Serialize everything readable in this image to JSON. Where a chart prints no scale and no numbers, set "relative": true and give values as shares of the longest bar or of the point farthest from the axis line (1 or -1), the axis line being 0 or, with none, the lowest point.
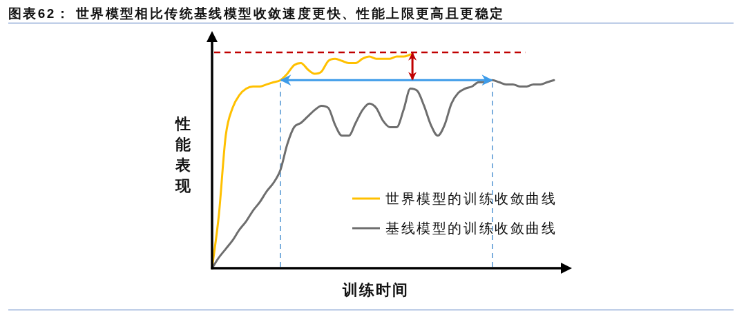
{
  "chart_data": {
    "type": "line",
    "title": "图表62： 世界模型相比传统基线模型收敛速度更快、性能上限更高且更稳定",
    "xlabel": "训练时间",
    "ylabel": "性能表现",
    "relative": true,
    "categories": [
      null,
      null,
      null,
      null,
      null,
      null,
      null,
      null,
      null,
      null,
      null,
      null,
      null,
      null,
      null,
      null,
      null,
      null,
      null,
      null,
      null,
      null,
      null,
      null,
      null,
      null,
      null,
      null,
      null,
      null,
      null,
      null,
      null,
      null,
      null,
      null,
      null,
      null,
      null,
      null,
      null,
      null,
      null,
      null,
      null,
      null,
      null,
      null,
      null,
      null,
      null
    ],
    "series": [
      {
        "name": "世界模型的训练收敛曲线",
        "color": "#ffc000",
        "values": [
          0,
          0.25,
          0.62,
          0.75,
          0.81,
          0.84,
          0.85,
          0.85,
          0.86,
          0.87,
          0.88,
          0.91,
          0.95,
          0.96,
          0.93,
          0.91,
          0.92,
          0.97,
          0.98,
          0.97,
          0.96,
          0.96,
          0.98,
          0.99,
          0.98,
          0.98,
          0.98,
          0.99,
          0.99,
          1,
          null,
          null,
          null,
          null,
          null,
          null,
          null,
          null,
          null,
          null,
          null,
          null,
          null,
          null,
          null,
          null,
          null,
          null,
          null,
          null,
          null
        ]
      },
      {
        "name": "基线模型的训练收敛曲线",
        "color": "#6e6e6e",
        "values": [
          0,
          0.05,
          0.09,
          0.13,
          0.18,
          0.22,
          0.27,
          0.31,
          0.36,
          0.4,
          0.46,
          0.58,
          0.66,
          0.68,
          0.71,
          0.74,
          0.76,
          0.75,
          0.67,
          0.62,
          0.62,
          0.68,
          0.74,
          0.77,
          0.75,
          0.69,
          0.66,
          0.66,
          0.74,
          0.84,
          0.83,
          0.76,
          0.67,
          0.62,
          0.67,
          0.77,
          0.82,
          0.84,
          0.85,
          0.87,
          0.87,
          0.88,
          0.87,
          0.86,
          0.86,
          0.85,
          0.85,
          0.86,
          0.86,
          0.87,
          0.88
        ]
      }
    ],
    "ref_lines": [
      {
        "axis": "y",
        "value": 1.01,
        "color": "#c00000",
        "line_style": "dashed"
      }
    ],
    "legend": "bottom right",
    "line_style": "solid"
  }
}
